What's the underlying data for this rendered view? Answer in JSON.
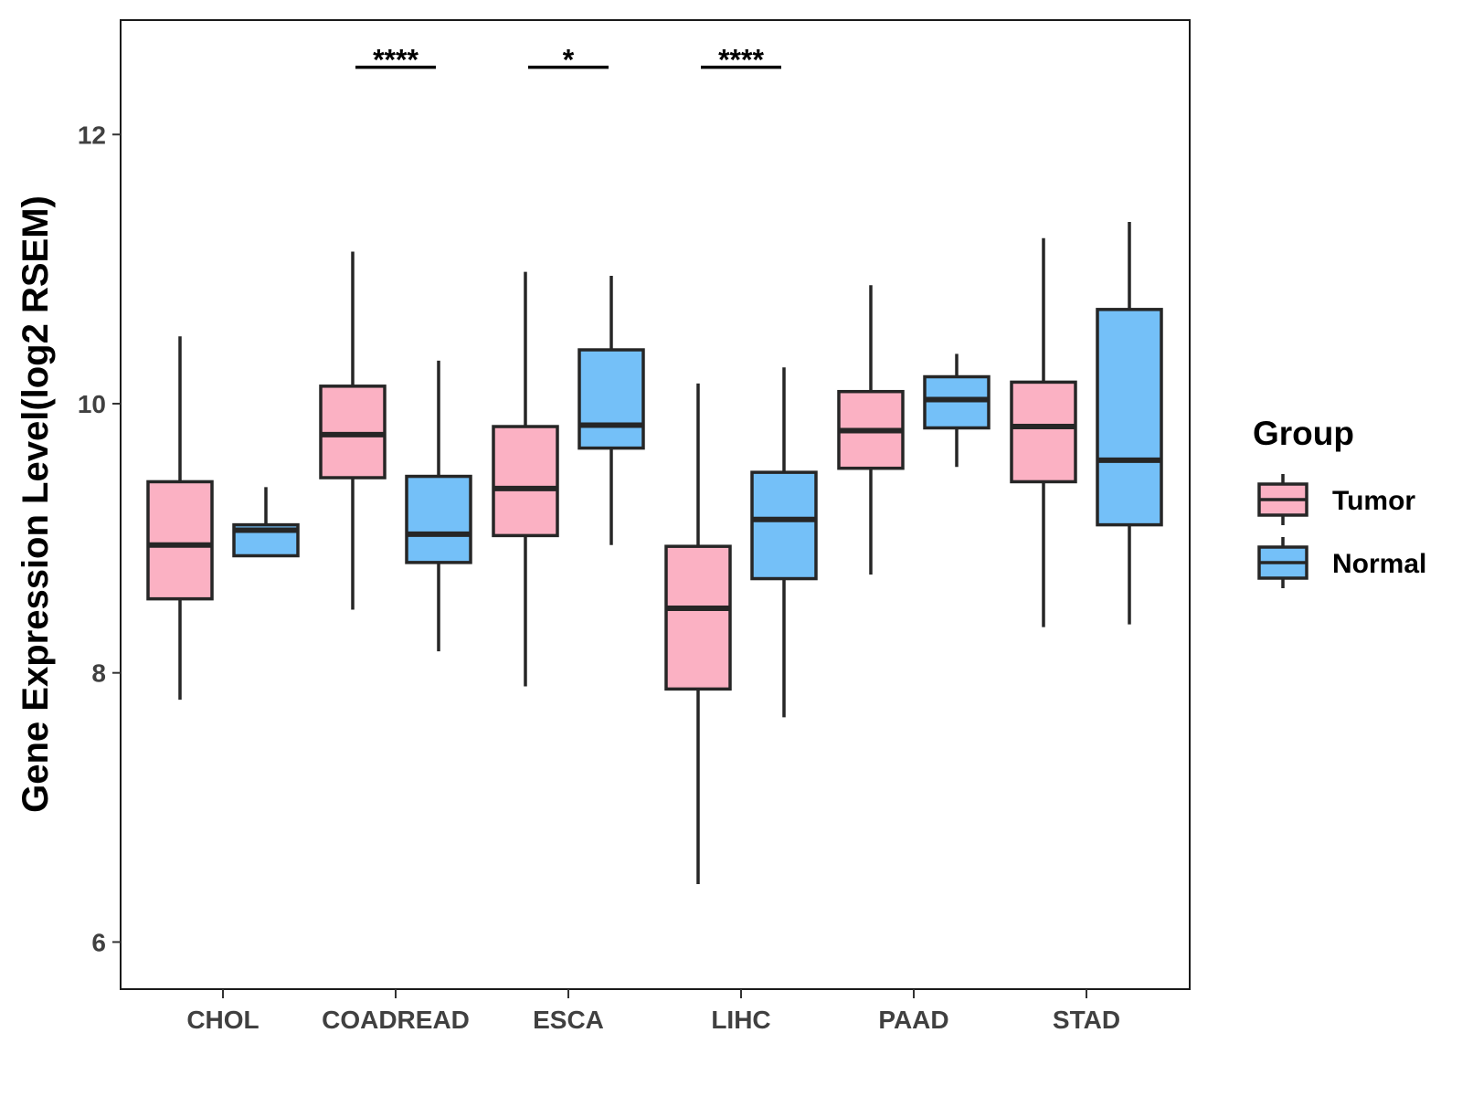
{
  "chart_data": {
    "type": "boxplot",
    "title": "",
    "xlabel": "",
    "ylabel": "Gene Expression Level(log2 RSEM)",
    "ylim": [
      5.65,
      12.85
    ],
    "yticks": [
      6,
      8,
      10,
      12
    ],
    "ytick_labels": [
      "6",
      "8",
      "10",
      "12"
    ],
    "grid": false,
    "categories": [
      "CHOL",
      "COADREAD",
      "ESCA",
      "LIHC",
      "PAAD",
      "STAD"
    ],
    "legend": {
      "title": "Group",
      "position": "right"
    },
    "series": [
      {
        "name": "Tumor",
        "color": "#FBB1C3",
        "boxes": [
          {
            "whisker_low": 7.8,
            "q1": 8.55,
            "median": 8.95,
            "q3": 9.42,
            "whisker_high": 10.5
          },
          {
            "whisker_low": 8.47,
            "q1": 9.45,
            "median": 9.77,
            "q3": 10.13,
            "whisker_high": 11.13
          },
          {
            "whisker_low": 7.9,
            "q1": 9.02,
            "median": 9.37,
            "q3": 9.83,
            "whisker_high": 10.98
          },
          {
            "whisker_low": 6.43,
            "q1": 7.88,
            "median": 8.48,
            "q3": 8.94,
            "whisker_high": 10.15
          },
          {
            "whisker_low": 8.73,
            "q1": 9.52,
            "median": 9.8,
            "q3": 10.09,
            "whisker_high": 10.88
          },
          {
            "whisker_low": 8.34,
            "q1": 9.42,
            "median": 9.83,
            "q3": 10.16,
            "whisker_high": 11.23
          }
        ]
      },
      {
        "name": "Normal",
        "color": "#74C0F8",
        "boxes": [
          {
            "whisker_low": 8.87,
            "q1": 8.87,
            "median": 9.06,
            "q3": 9.1,
            "whisker_high": 9.38
          },
          {
            "whisker_low": 8.16,
            "q1": 8.82,
            "median": 9.03,
            "q3": 9.46,
            "whisker_high": 10.32
          },
          {
            "whisker_low": 8.95,
            "q1": 9.67,
            "median": 9.84,
            "q3": 10.4,
            "whisker_high": 10.95
          },
          {
            "whisker_low": 7.67,
            "q1": 8.7,
            "median": 9.14,
            "q3": 9.49,
            "whisker_high": 10.27
          },
          {
            "whisker_low": 9.53,
            "q1": 9.82,
            "median": 10.03,
            "q3": 10.2,
            "whisker_high": 10.37
          },
          {
            "whisker_low": 8.36,
            "q1": 9.1,
            "median": 9.58,
            "q3": 10.7,
            "whisker_high": 11.35
          }
        ]
      }
    ],
    "significance": [
      {
        "category": "COADREAD",
        "label": "****",
        "y": 12.5
      },
      {
        "category": "ESCA",
        "label": "*",
        "y": 12.5
      },
      {
        "category": "LIHC",
        "label": "****",
        "y": 12.5
      }
    ]
  }
}
